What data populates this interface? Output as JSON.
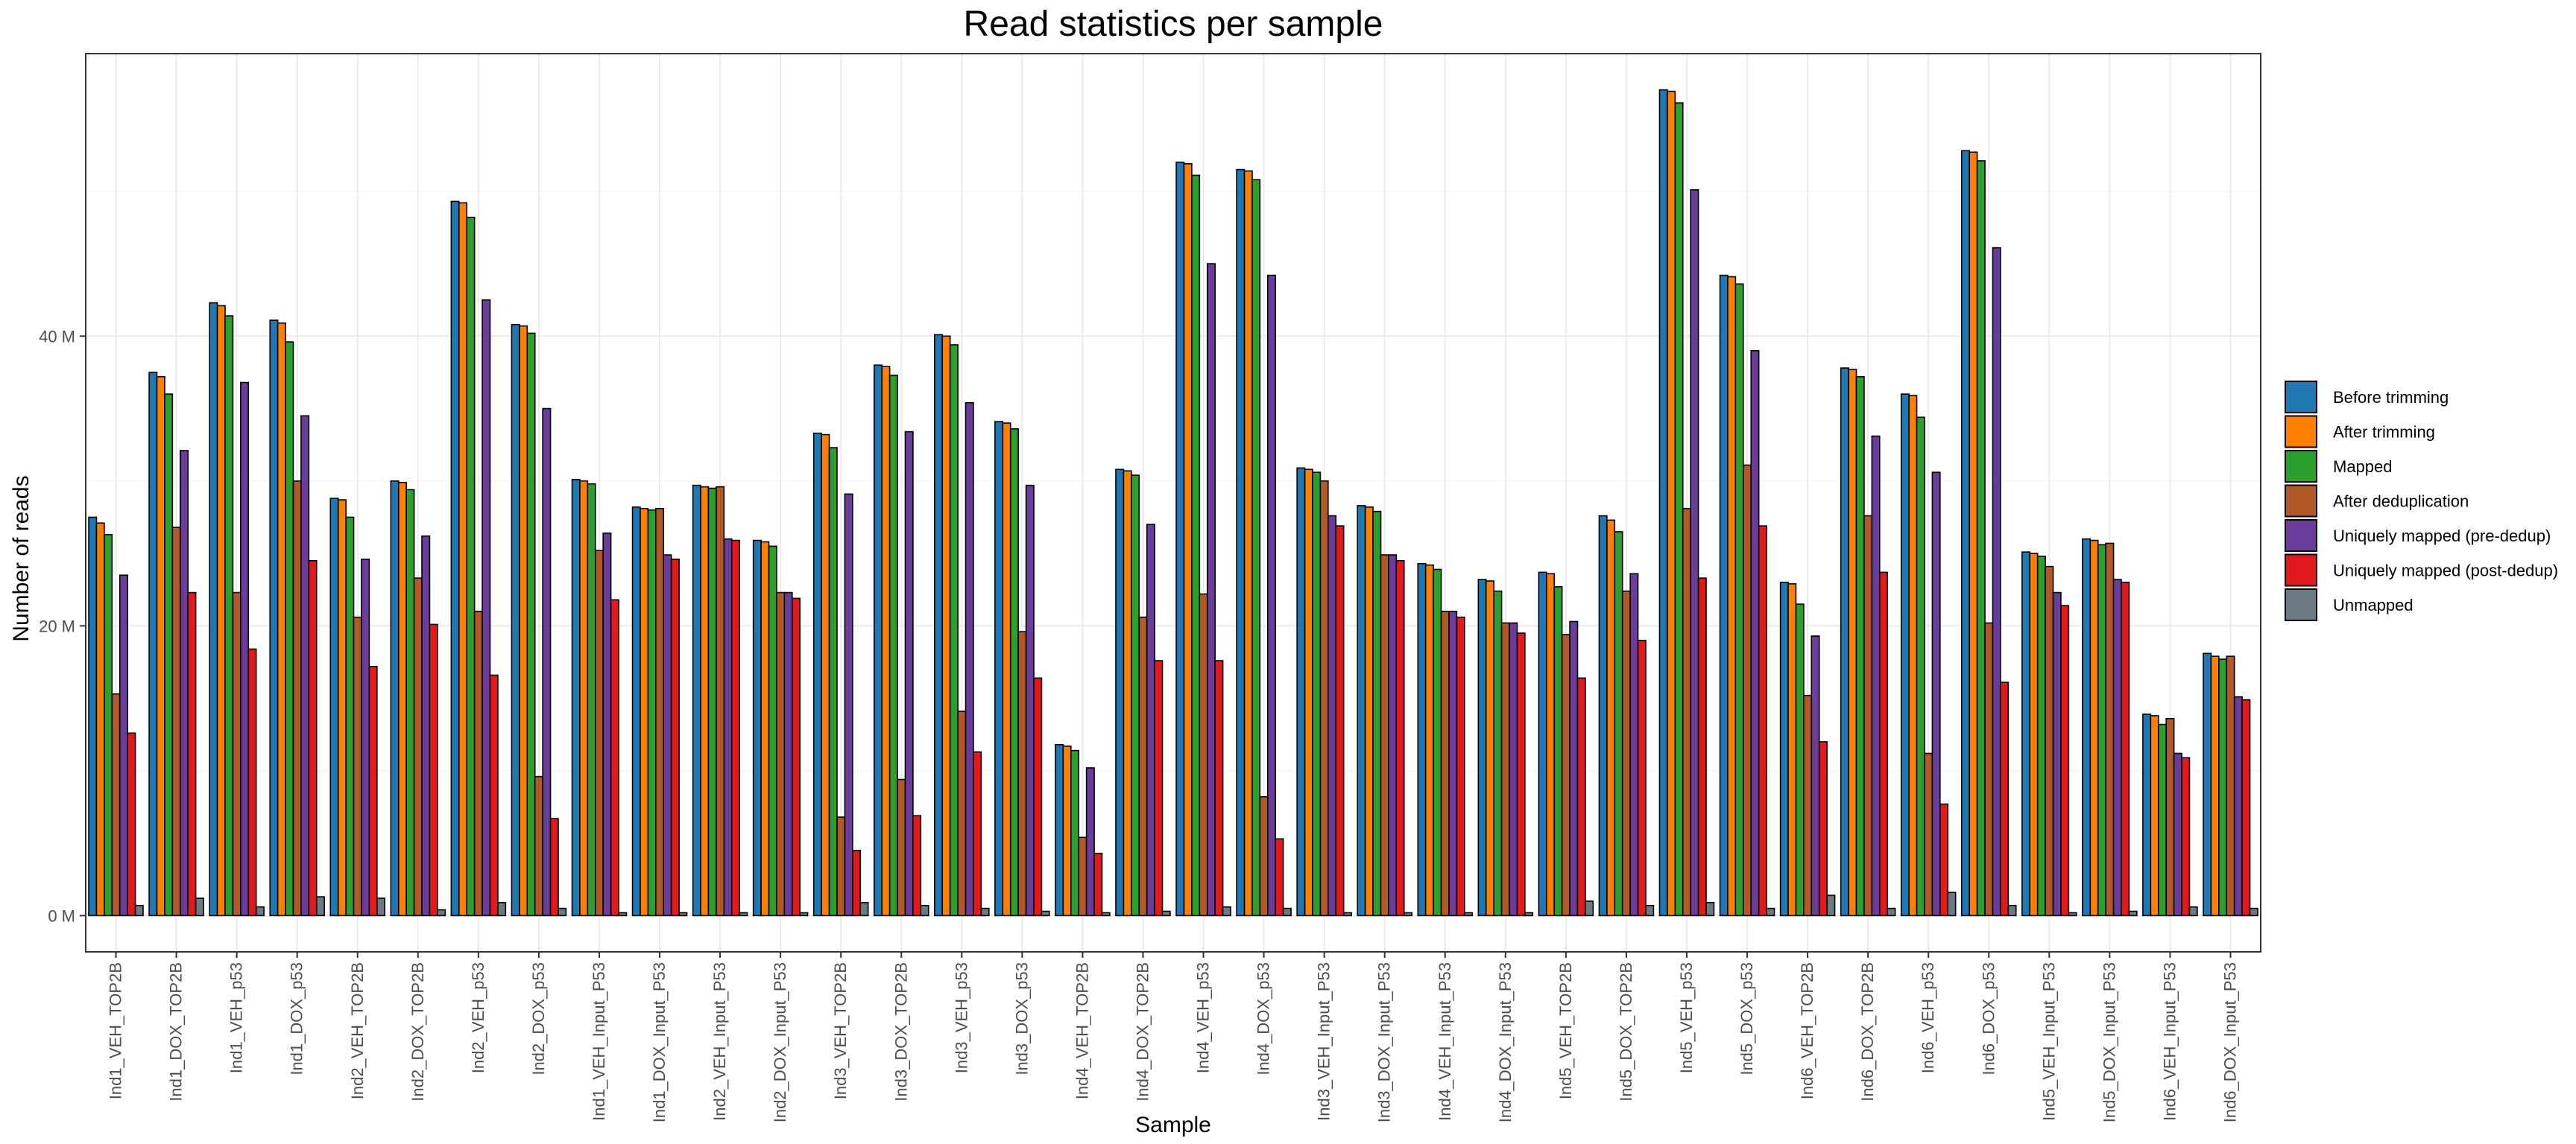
{
  "chart_data": {
    "type": "bar",
    "title": "Read statistics per sample",
    "xlabel": "Sample",
    "ylabel": "Number of reads",
    "ylim": [
      -2.5,
      59.5
    ],
    "yunit": "M",
    "yticks": [
      0,
      20,
      40
    ],
    "ytick_labels": [
      "0 M",
      "20 M",
      "40 M"
    ],
    "grid": true,
    "legend_position": "right",
    "categories": [
      "Ind1_VEH_TOP2B",
      "Ind1_DOX_TOP2B",
      "Ind1_VEH_p53",
      "Ind1_DOX_p53",
      "Ind2_VEH_TOP2B",
      "Ind2_DOX_TOP2B",
      "Ind2_VEH_p53",
      "Ind2_DOX_p53",
      "Ind1_VEH_Input_P53",
      "Ind1_DOX_Input_P53",
      "Ind2_VEH_Input_P53",
      "Ind2_DOX_Input_P53",
      "Ind3_VEH_TOP2B",
      "Ind3_DOX_TOP2B",
      "Ind3_VEH_p53",
      "Ind3_DOX_p53",
      "Ind4_VEH_TOP2B",
      "Ind4_DOX_TOP2B",
      "Ind4_VEH_p53",
      "Ind4_DOX_p53",
      "Ind3_VEH_Input_P53",
      "Ind3_DOX_Input_P53",
      "Ind4_VEH_Input_P53",
      "Ind4_DOX_Input_P53",
      "Ind5_VEH_TOP2B",
      "Ind5_DOX_TOP2B",
      "Ind5_VEH_p53",
      "Ind5_DOX_p53",
      "Ind6_VEH_TOP2B",
      "Ind6_DOX_TOP2B",
      "Ind6_VEH_p53",
      "Ind6_DOX_p53",
      "Ind5_VEH_Input_P53",
      "Ind5_DOX_Input_P53",
      "Ind6_VEH_Input_P53",
      "Ind6_DOX_Input_P53"
    ],
    "series": [
      {
        "name": "Before trimming",
        "color": "#1f78b4",
        "values": [
          27.5,
          37.5,
          42.3,
          41.1,
          28.8,
          30.0,
          49.3,
          40.8,
          30.1,
          28.2,
          29.7,
          25.9,
          33.3,
          38.0,
          40.1,
          34.1,
          11.8,
          30.8,
          52.0,
          51.5,
          30.9,
          28.3,
          24.3,
          23.2,
          23.7,
          27.6,
          57.0,
          44.2,
          23.0,
          37.8,
          36.0,
          52.8,
          25.1,
          26.0,
          13.9,
          18.1
        ]
      },
      {
        "name": "After trimming",
        "color": "#ff7f00",
        "values": [
          27.1,
          37.2,
          42.1,
          40.9,
          28.7,
          29.9,
          49.2,
          40.7,
          30.0,
          28.1,
          29.6,
          25.8,
          33.2,
          37.9,
          40.0,
          34.0,
          11.7,
          30.7,
          51.9,
          51.4,
          30.8,
          28.2,
          24.2,
          23.1,
          23.6,
          27.3,
          56.9,
          44.1,
          22.9,
          37.7,
          35.9,
          52.7,
          25.0,
          25.9,
          13.8,
          17.9
        ]
      },
      {
        "name": "Mapped",
        "color": "#2ca02c",
        "values": [
          26.3,
          36.0,
          41.4,
          39.6,
          27.5,
          29.4,
          48.2,
          40.2,
          29.8,
          28.0,
          29.5,
          25.5,
          32.3,
          37.3,
          39.4,
          33.6,
          11.4,
          30.4,
          51.1,
          50.8,
          30.6,
          27.9,
          23.9,
          22.4,
          22.7,
          26.5,
          56.1,
          43.6,
          21.5,
          37.2,
          34.4,
          52.1,
          24.8,
          25.6,
          13.2,
          17.7
        ]
      },
      {
        "name": "After deduplication",
        "color": "#b15928",
        "values": [
          15.3,
          26.8,
          22.3,
          30.0,
          20.6,
          23.3,
          21.0,
          9.6,
          25.2,
          28.1,
          29.6,
          22.3,
          6.8,
          9.4,
          14.1,
          19.6,
          5.4,
          20.6,
          22.2,
          8.2,
          30.0,
          24.9,
          21.0,
          20.2,
          19.4,
          22.4,
          28.1,
          31.1,
          15.2,
          27.6,
          11.2,
          20.2,
          24.1,
          25.7,
          13.6,
          17.9
        ]
      },
      {
        "name": "Uniquely mapped (pre-dedup)",
        "color": "#6a3d9a",
        "values": [
          23.5,
          32.1,
          36.8,
          34.5,
          24.6,
          26.2,
          42.5,
          35.0,
          26.4,
          24.9,
          26.0,
          22.3,
          29.1,
          33.4,
          35.4,
          29.7,
          10.2,
          27.0,
          45.0,
          44.2,
          27.6,
          24.9,
          21.0,
          20.2,
          20.3,
          23.6,
          50.1,
          39.0,
          19.3,
          33.1,
          30.6,
          46.1,
          22.3,
          23.2,
          11.2,
          15.1
        ]
      },
      {
        "name": "Uniquely mapped (post-dedup)",
        "color": "#e31a1c",
        "values": [
          12.6,
          22.3,
          18.4,
          24.5,
          17.2,
          20.1,
          16.6,
          6.7,
          21.8,
          24.6,
          25.9,
          21.9,
          4.5,
          6.9,
          11.3,
          16.4,
          4.3,
          17.6,
          17.6,
          5.3,
          26.9,
          24.5,
          20.6,
          19.5,
          16.4,
          19.0,
          23.3,
          26.9,
          12.0,
          23.7,
          7.7,
          16.1,
          21.4,
          23.0,
          10.9,
          14.9
        ]
      },
      {
        "name": "Unmapped",
        "color": "#6c7a84",
        "values": [
          0.7,
          1.2,
          0.6,
          1.3,
          1.2,
          0.4,
          0.9,
          0.5,
          0.2,
          0.2,
          0.2,
          0.2,
          0.9,
          0.7,
          0.5,
          0.3,
          0.2,
          0.3,
          0.6,
          0.5,
          0.2,
          0.2,
          0.2,
          0.2,
          1.0,
          0.7,
          0.9,
          0.5,
          1.4,
          0.5,
          1.6,
          0.7,
          0.2,
          0.3,
          0.6,
          0.5
        ]
      }
    ]
  }
}
